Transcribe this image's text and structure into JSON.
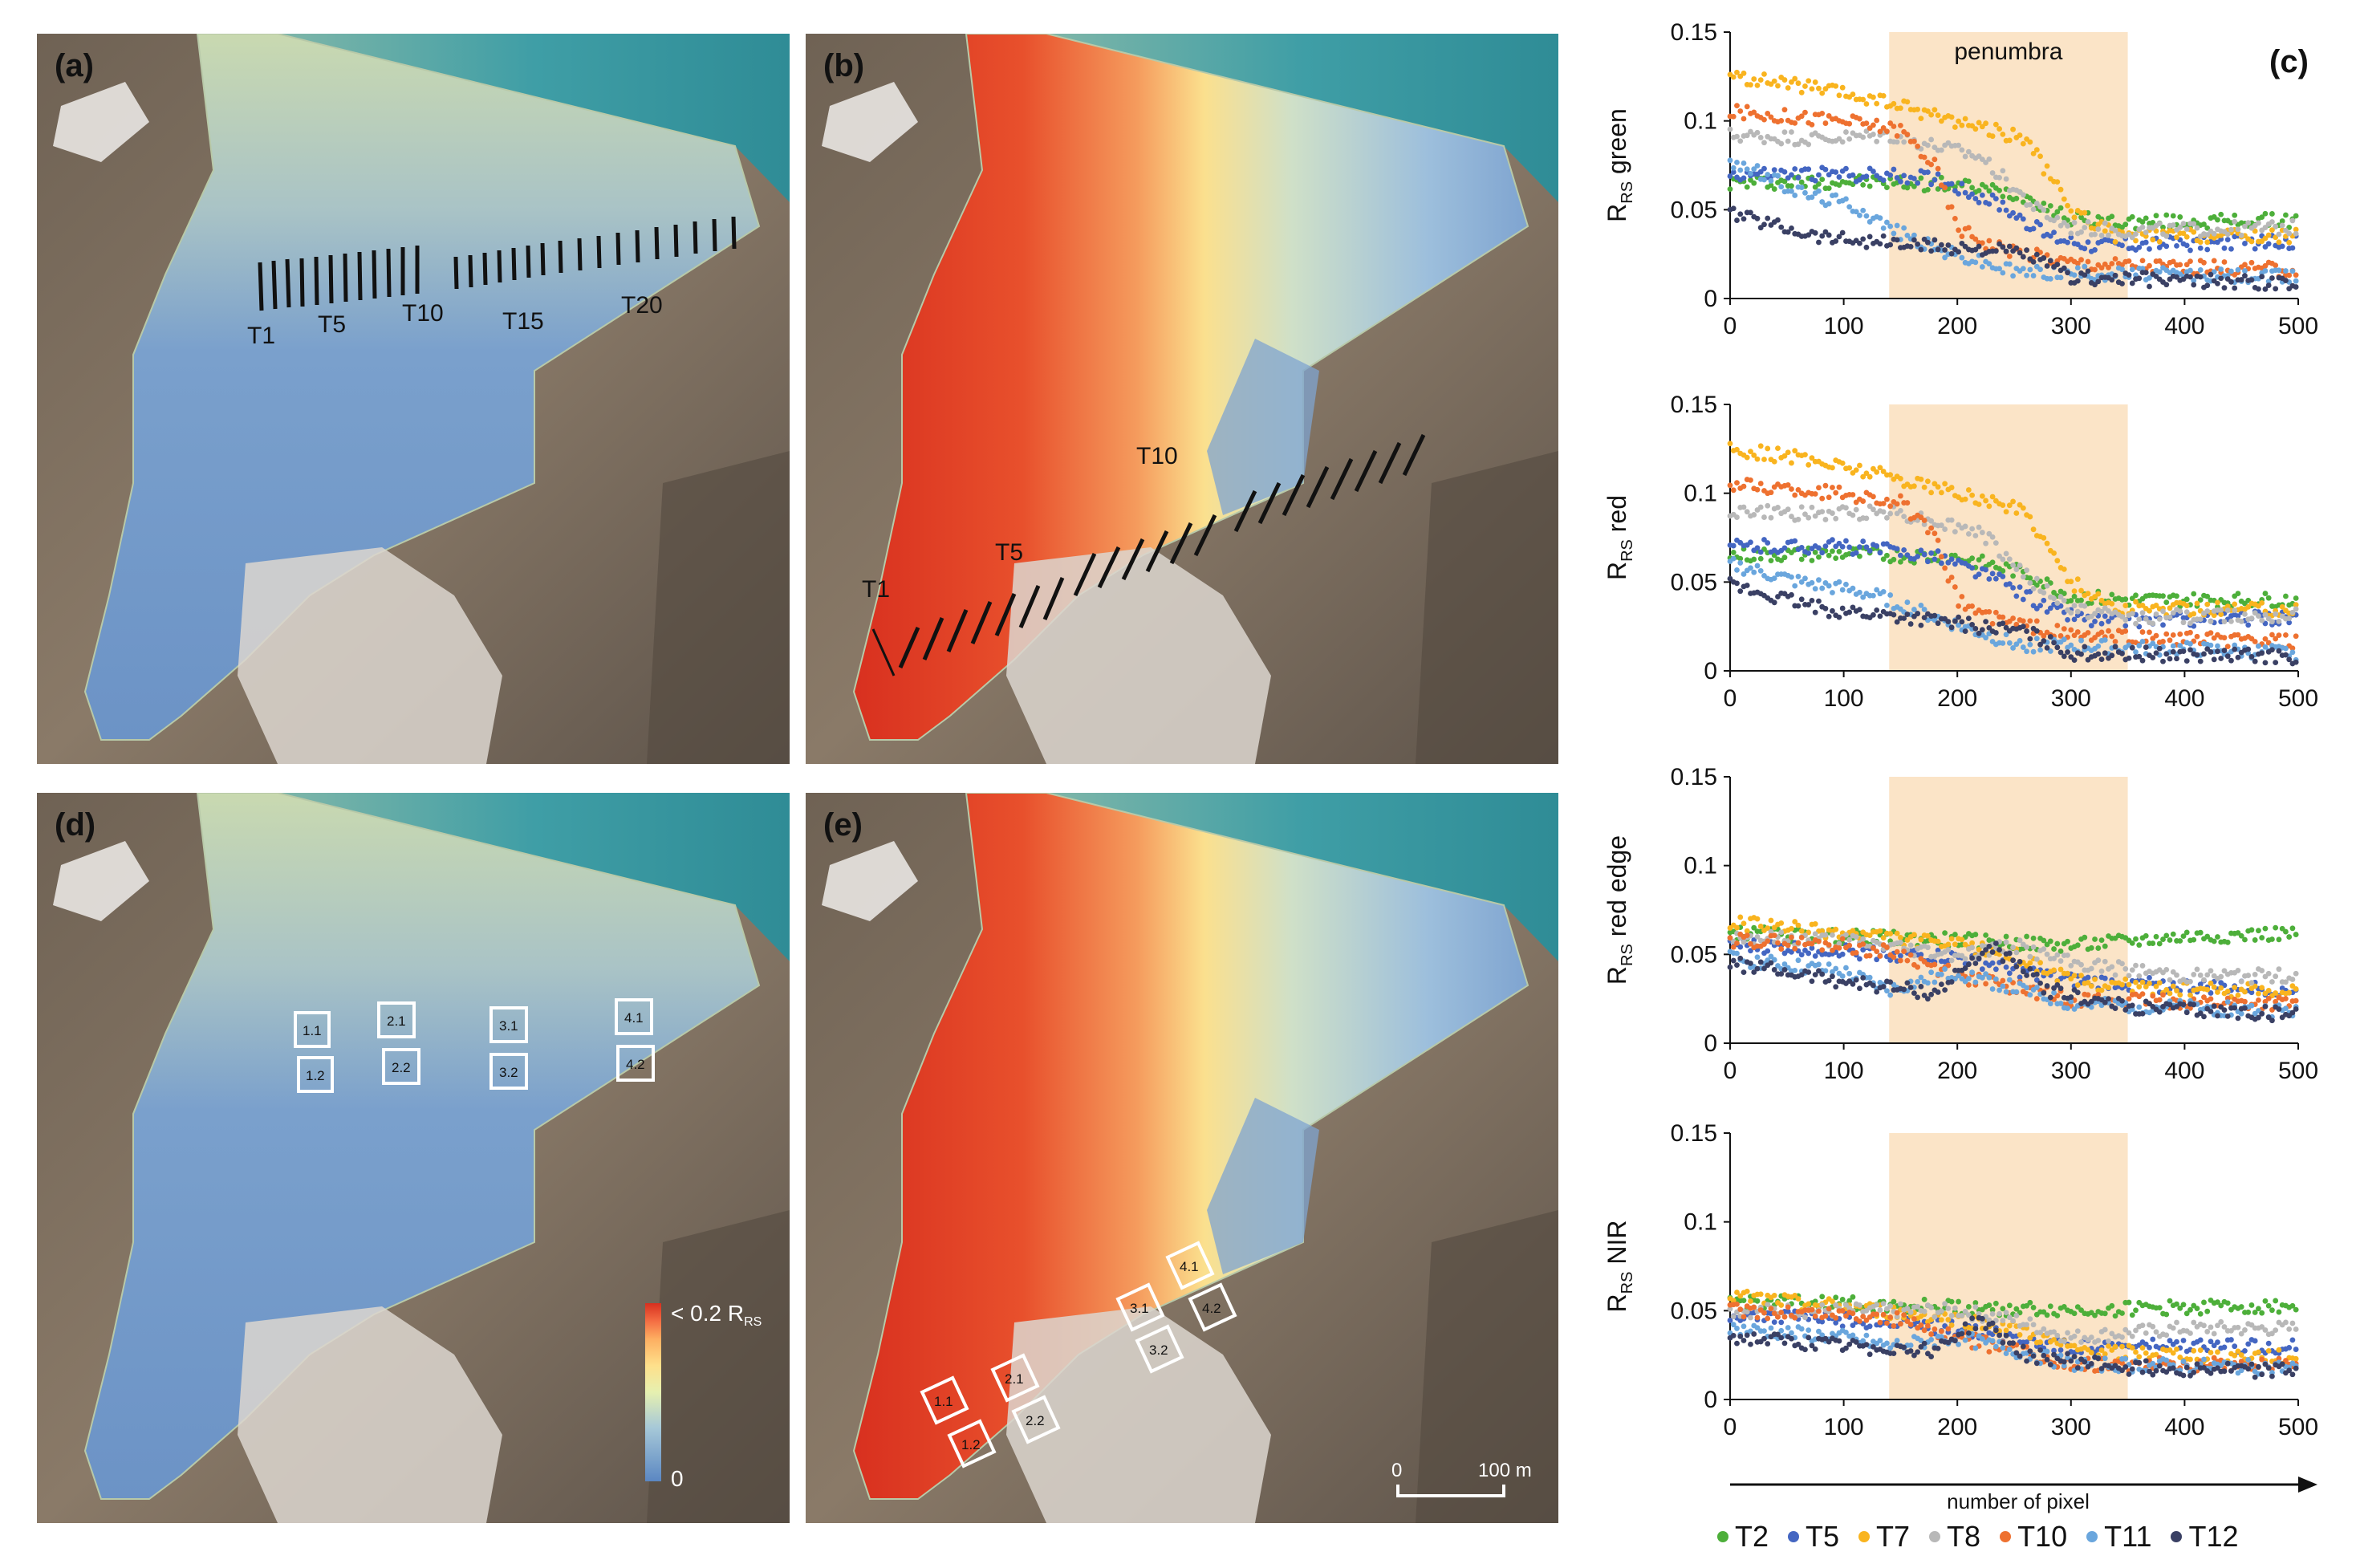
{
  "panels": {
    "a": "(a)",
    "b": "(b)",
    "c": "(c)",
    "d": "(d)",
    "e": "(e)"
  },
  "transect_labels_a": [
    "T1",
    "T5",
    "T10",
    "T15",
    "T20"
  ],
  "transect_labels_b": [
    "T1",
    "T5",
    "T10"
  ],
  "box_labels": [
    "1.1",
    "1.2",
    "2.1",
    "2.2",
    "3.1",
    "3.2",
    "4.1",
    "4.2"
  ],
  "colorbar": {
    "top_label": "< 0.2 R",
    "top_sub": "RS",
    "bottom_label": "0",
    "colors": [
      "#d7301f",
      "#f46d43",
      "#fdae61",
      "#fee08b",
      "#e6f0b0",
      "#a6c8d8",
      "#5b87c2"
    ]
  },
  "scalebar": {
    "left": "0",
    "right": "100 m"
  },
  "colors": {
    "water": "#6c96c8",
    "rock": "#7d6c5a",
    "snow": "#e9e6e2",
    "sea": "#4fa3a8",
    "penumbra": "#fbe4c7"
  },
  "chart_data": [
    {
      "type": "scatter",
      "name": "green",
      "ylabel_main": "R",
      "ylabel_sub": "RS",
      "ylabel_suffix": " green",
      "xlabel": "number of pixel",
      "xlim": [
        0,
        500
      ],
      "ylim": [
        0,
        0.15
      ],
      "xticks": [
        "0",
        "100",
        "200",
        "300",
        "400",
        "500"
      ],
      "yticks": [
        "0",
        "0.05",
        "0.1",
        "0.15"
      ],
      "penumbra_range": [
        140,
        350
      ],
      "penumbra_label": "penumbra",
      "series": [
        {
          "name": "T2",
          "color": "#4daf3a",
          "values": [
            [
              0,
              0.065
            ],
            [
              100,
              0.066
            ],
            [
              200,
              0.064
            ],
            [
              260,
              0.058
            ],
            [
              300,
              0.045
            ],
            [
              350,
              0.043
            ],
            [
              500,
              0.044
            ]
          ]
        },
        {
          "name": "T5",
          "color": "#4466c2",
          "values": [
            [
              0,
              0.07
            ],
            [
              100,
              0.07
            ],
            [
              180,
              0.068
            ],
            [
              240,
              0.052
            ],
            [
              280,
              0.035
            ],
            [
              320,
              0.03
            ],
            [
              500,
              0.032
            ]
          ]
        },
        {
          "name": "T7",
          "color": "#f9b41f",
          "values": [
            [
              0,
              0.125
            ],
            [
              60,
              0.12
            ],
            [
              140,
              0.11
            ],
            [
              200,
              0.1
            ],
            [
              260,
              0.09
            ],
            [
              300,
              0.05
            ],
            [
              340,
              0.035
            ],
            [
              500,
              0.035
            ]
          ]
        },
        {
          "name": "T8",
          "color": "#b8b8b8",
          "values": [
            [
              0,
              0.092
            ],
            [
              80,
              0.09
            ],
            [
              140,
              0.092
            ],
            [
              220,
              0.08
            ],
            [
              270,
              0.05
            ],
            [
              300,
              0.04
            ],
            [
              350,
              0.038
            ],
            [
              500,
              0.04
            ]
          ]
        },
        {
          "name": "T10",
          "color": "#ee7130",
          "values": [
            [
              0,
              0.105
            ],
            [
              100,
              0.1
            ],
            [
              150,
              0.095
            ],
            [
              180,
              0.075
            ],
            [
              200,
              0.04
            ],
            [
              230,
              0.03
            ],
            [
              300,
              0.02
            ],
            [
              500,
              0.016
            ]
          ]
        },
        {
          "name": "T11",
          "color": "#6aa6dd",
          "values": [
            [
              0,
              0.078
            ],
            [
              60,
              0.06
            ],
            [
              110,
              0.052
            ],
            [
              140,
              0.04
            ],
            [
              180,
              0.028
            ],
            [
              250,
              0.015
            ],
            [
              500,
              0.012
            ]
          ]
        },
        {
          "name": "T12",
          "color": "#3a4064",
          "values": [
            [
              0,
              0.048
            ],
            [
              80,
              0.035
            ],
            [
              160,
              0.03
            ],
            [
              220,
              0.028
            ],
            [
              260,
              0.025
            ],
            [
              300,
              0.012
            ],
            [
              500,
              0.008
            ]
          ]
        }
      ]
    },
    {
      "type": "scatter",
      "name": "red",
      "ylabel_main": "R",
      "ylabel_sub": "RS",
      "ylabel_suffix": " red",
      "xlabel": "number of pixel",
      "xlim": [
        0,
        500
      ],
      "ylim": [
        0,
        0.15
      ],
      "xticks": [
        "0",
        "100",
        "200",
        "300",
        "400",
        "500"
      ],
      "yticks": [
        "0",
        "0.05",
        "0.1",
        "0.15"
      ],
      "penumbra_range": [
        140,
        350
      ],
      "penumbra_label": "",
      "series": [
        {
          "name": "T2",
          "color": "#4daf3a",
          "values": [
            [
              0,
              0.065
            ],
            [
              100,
              0.066
            ],
            [
              200,
              0.064
            ],
            [
              260,
              0.055
            ],
            [
              300,
              0.042
            ],
            [
              350,
              0.04
            ],
            [
              500,
              0.04
            ]
          ]
        },
        {
          "name": "T5",
          "color": "#4466c2",
          "values": [
            [
              0,
              0.07
            ],
            [
              100,
              0.07
            ],
            [
              180,
              0.065
            ],
            [
              240,
              0.05
            ],
            [
              280,
              0.035
            ],
            [
              320,
              0.028
            ],
            [
              500,
              0.03
            ]
          ]
        },
        {
          "name": "T7",
          "color": "#f9b41f",
          "values": [
            [
              0,
              0.125
            ],
            [
              60,
              0.12
            ],
            [
              140,
              0.11
            ],
            [
              200,
              0.1
            ],
            [
              260,
              0.09
            ],
            [
              300,
              0.05
            ],
            [
              340,
              0.035
            ],
            [
              500,
              0.035
            ]
          ]
        },
        {
          "name": "T8",
          "color": "#b8b8b8",
          "values": [
            [
              0,
              0.09
            ],
            [
              80,
              0.088
            ],
            [
              140,
              0.09
            ],
            [
              220,
              0.078
            ],
            [
              270,
              0.048
            ],
            [
              300,
              0.035
            ],
            [
              350,
              0.03
            ],
            [
              500,
              0.032
            ]
          ]
        },
        {
          "name": "T10",
          "color": "#ee7130",
          "values": [
            [
              0,
              0.105
            ],
            [
              100,
              0.1
            ],
            [
              150,
              0.095
            ],
            [
              180,
              0.075
            ],
            [
              200,
              0.04
            ],
            [
              230,
              0.03
            ],
            [
              300,
              0.02
            ],
            [
              500,
              0.016
            ]
          ]
        },
        {
          "name": "T11",
          "color": "#6aa6dd",
          "values": [
            [
              0,
              0.06
            ],
            [
              60,
              0.05
            ],
            [
              110,
              0.045
            ],
            [
              140,
              0.04
            ],
            [
              180,
              0.03
            ],
            [
              250,
              0.015
            ],
            [
              500,
              0.01
            ]
          ]
        },
        {
          "name": "T12",
          "color": "#3a4064",
          "values": [
            [
              0,
              0.048
            ],
            [
              80,
              0.035
            ],
            [
              160,
              0.03
            ],
            [
              220,
              0.025
            ],
            [
              260,
              0.022
            ],
            [
              300,
              0.01
            ],
            [
              500,
              0.008
            ]
          ]
        }
      ]
    },
    {
      "type": "scatter",
      "name": "red edge",
      "ylabel_main": "R",
      "ylabel_sub": "RS",
      "ylabel_suffix": " red edge",
      "xlabel": "number of pixel",
      "xlim": [
        0,
        500
      ],
      "ylim": [
        0,
        0.15
      ],
      "xticks": [
        "0",
        "100",
        "200",
        "300",
        "400",
        "500"
      ],
      "yticks": [
        "0",
        "0.05",
        "0.1",
        "0.15"
      ],
      "penumbra_range": [
        140,
        350
      ],
      "penumbra_label": "",
      "series": [
        {
          "name": "T2",
          "color": "#4daf3a",
          "values": [
            [
              0,
              0.062
            ],
            [
              100,
              0.06
            ],
            [
              200,
              0.058
            ],
            [
              300,
              0.055
            ],
            [
              400,
              0.06
            ],
            [
              500,
              0.062
            ]
          ]
        },
        {
          "name": "T5",
          "color": "#4466c2",
          "values": [
            [
              0,
              0.055
            ],
            [
              100,
              0.052
            ],
            [
              200,
              0.048
            ],
            [
              300,
              0.035
            ],
            [
              400,
              0.032
            ],
            [
              500,
              0.03
            ]
          ]
        },
        {
          "name": "T7",
          "color": "#f9b41f",
          "values": [
            [
              0,
              0.068
            ],
            [
              100,
              0.062
            ],
            [
              200,
              0.055
            ],
            [
              250,
              0.05
            ],
            [
              300,
              0.035
            ],
            [
              400,
              0.03
            ],
            [
              500,
              0.03
            ]
          ]
        },
        {
          "name": "T8",
          "color": "#b8b8b8",
          "values": [
            [
              0,
              0.06
            ],
            [
              100,
              0.058
            ],
            [
              200,
              0.05
            ],
            [
              250,
              0.055
            ],
            [
              300,
              0.045
            ],
            [
              400,
              0.038
            ],
            [
              500,
              0.038
            ]
          ]
        },
        {
          "name": "T10",
          "color": "#ee7130",
          "values": [
            [
              0,
              0.058
            ],
            [
              100,
              0.055
            ],
            [
              150,
              0.05
            ],
            [
              200,
              0.038
            ],
            [
              300,
              0.025
            ],
            [
              500,
              0.022
            ]
          ]
        },
        {
          "name": "T11",
          "color": "#6aa6dd",
          "values": [
            [
              0,
              0.048
            ],
            [
              100,
              0.04
            ],
            [
              140,
              0.03
            ],
            [
              200,
              0.04
            ],
            [
              300,
              0.022
            ],
            [
              500,
              0.018
            ]
          ]
        },
        {
          "name": "T12",
          "color": "#3a4064",
          "values": [
            [
              0,
              0.045
            ],
            [
              100,
              0.035
            ],
            [
              180,
              0.028
            ],
            [
              230,
              0.055
            ],
            [
              280,
              0.03
            ],
            [
              350,
              0.02
            ],
            [
              500,
              0.016
            ]
          ]
        }
      ]
    },
    {
      "type": "scatter",
      "name": "NIR",
      "ylabel_main": "R",
      "ylabel_sub": "RS",
      "ylabel_suffix": " NIR",
      "xlabel": "number of pixel",
      "xlim": [
        0,
        500
      ],
      "ylim": [
        0,
        0.15
      ],
      "xticks": [
        "0",
        "100",
        "200",
        "300",
        "400",
        "500"
      ],
      "yticks": [
        "0",
        "0.05",
        "0.1",
        "0.15"
      ],
      "penumbra_range": [
        140,
        350
      ],
      "penumbra_label": "",
      "series": [
        {
          "name": "T2",
          "color": "#4daf3a",
          "values": [
            [
              0,
              0.055
            ],
            [
              100,
              0.054
            ],
            [
              200,
              0.052
            ],
            [
              300,
              0.05
            ],
            [
              400,
              0.052
            ],
            [
              500,
              0.053
            ]
          ]
        },
        {
          "name": "T5",
          "color": "#4466c2",
          "values": [
            [
              0,
              0.048
            ],
            [
              100,
              0.045
            ],
            [
              200,
              0.04
            ],
            [
              300,
              0.03
            ],
            [
              400,
              0.03
            ],
            [
              500,
              0.03
            ]
          ]
        },
        {
          "name": "T7",
          "color": "#f9b41f",
          "values": [
            [
              0,
              0.058
            ],
            [
              100,
              0.052
            ],
            [
              200,
              0.045
            ],
            [
              250,
              0.04
            ],
            [
              300,
              0.028
            ],
            [
              400,
              0.025
            ],
            [
              500,
              0.024
            ]
          ]
        },
        {
          "name": "T8",
          "color": "#b8b8b8",
          "values": [
            [
              0,
              0.05
            ],
            [
              100,
              0.05
            ],
            [
              200,
              0.05
            ],
            [
              250,
              0.045
            ],
            [
              300,
              0.035
            ],
            [
              400,
              0.04
            ],
            [
              500,
              0.04
            ]
          ]
        },
        {
          "name": "T10",
          "color": "#ee7130",
          "values": [
            [
              0,
              0.05
            ],
            [
              100,
              0.048
            ],
            [
              150,
              0.045
            ],
            [
              200,
              0.035
            ],
            [
              300,
              0.02
            ],
            [
              500,
              0.02
            ]
          ]
        },
        {
          "name": "T11",
          "color": "#6aa6dd",
          "values": [
            [
              0,
              0.04
            ],
            [
              100,
              0.035
            ],
            [
              140,
              0.03
            ],
            [
              200,
              0.035
            ],
            [
              300,
              0.02
            ],
            [
              500,
              0.018
            ]
          ]
        },
        {
          "name": "T12",
          "color": "#3a4064",
          "values": [
            [
              0,
              0.035
            ],
            [
              100,
              0.03
            ],
            [
              180,
              0.028
            ],
            [
              220,
              0.045
            ],
            [
              260,
              0.025
            ],
            [
              350,
              0.018
            ],
            [
              500,
              0.016
            ]
          ]
        }
      ]
    }
  ],
  "legend": [
    "T2",
    "T5",
    "T7",
    "T8",
    "T10",
    "T11",
    "T12"
  ],
  "legend_colors": [
    "#4daf3a",
    "#4466c2",
    "#f9b41f",
    "#b8b8b8",
    "#ee7130",
    "#6aa6dd",
    "#3a4064"
  ]
}
